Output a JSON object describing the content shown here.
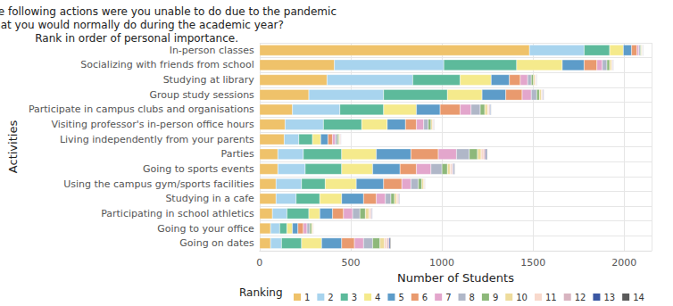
{
  "chart_data": {
    "type": "bar",
    "orientation": "horizontal",
    "stacked": true,
    "title": "Which of the following actions were you unable to do due to the pandemic\nthat you would normally do during the academic year?\nRank in order of personal importance.",
    "x_label": "Number of Students",
    "y_label": "Activities",
    "legend_title": "Ranking",
    "legend": "bottom",
    "grid": true,
    "xlim": [
      0,
      2150
    ],
    "xticks": [
      0,
      500,
      1000,
      1500,
      2000
    ],
    "categories": [
      "In-person classes",
      "Socializing with friends from school",
      "Studying at library",
      "Group study sessions",
      "Participate in campus clubs and organisations",
      "Visiting professor's in-person office hours",
      "Living independently from your parents",
      "Parties",
      "Going to sports events",
      "Using the campus gym/sports facilities",
      "Studying in a cafe",
      "Participating in school athletics",
      "Going to your office",
      "Going on dates"
    ],
    "series": [
      {
        "name": "1",
        "color": "#EFC26A",
        "values": [
          1480,
          410,
          370,
          270,
          180,
          140,
          135,
          100,
          100,
          90,
          90,
          70,
          60,
          60
        ]
      },
      {
        "name": "2",
        "color": "#A8D4EE",
        "values": [
          300,
          600,
          470,
          410,
          260,
          210,
          80,
          140,
          150,
          140,
          110,
          80,
          50,
          60
        ]
      },
      {
        "name": "3",
        "color": "#5DBA9B",
        "values": [
          140,
          400,
          260,
          350,
          240,
          210,
          75,
          210,
          200,
          130,
          130,
          120,
          40,
          110
        ]
      },
      {
        "name": "4",
        "color": "#F5EA8C",
        "values": [
          75,
          250,
          170,
          190,
          180,
          140,
          45,
          190,
          170,
          170,
          120,
          60,
          30,
          110
        ]
      },
      {
        "name": "5",
        "color": "#5D9CC9",
        "values": [
          45,
          120,
          100,
          130,
          130,
          100,
          40,
          190,
          150,
          150,
          120,
          70,
          30,
          110
        ]
      },
      {
        "name": "6",
        "color": "#E99A6E",
        "values": [
          30,
          70,
          60,
          90,
          110,
          60,
          25,
          150,
          90,
          100,
          70,
          60,
          30,
          70
        ]
      },
      {
        "name": "7",
        "color": "#E3A6CC",
        "values": [
          10,
          30,
          40,
          50,
          60,
          40,
          15,
          100,
          80,
          50,
          50,
          50,
          20,
          50
        ]
      },
      {
        "name": "8",
        "color": "#B0B7C8",
        "values": [
          8,
          25,
          20,
          30,
          50,
          25,
          12,
          70,
          60,
          40,
          30,
          40,
          15,
          50
        ]
      },
      {
        "name": "9",
        "color": "#8DB87A",
        "values": [
          5,
          15,
          12,
          15,
          25,
          15,
          8,
          45,
          30,
          20,
          20,
          30,
          10,
          40
        ]
      },
      {
        "name": "10",
        "color": "#EEDC9C",
        "values": [
          4,
          10,
          8,
          10,
          15,
          8,
          5,
          20,
          15,
          10,
          12,
          20,
          6,
          25
        ]
      },
      {
        "name": "11",
        "color": "#F8D9CC",
        "values": [
          3,
          5,
          5,
          6,
          8,
          5,
          4,
          15,
          10,
          5,
          8,
          10,
          4,
          15
        ]
      },
      {
        "name": "12",
        "color": "#D8B4C0",
        "values": [
          2,
          3,
          3,
          4,
          6,
          3,
          3,
          10,
          7,
          3,
          5,
          6,
          3,
          10
        ]
      },
      {
        "name": "13",
        "color": "#3B58A3",
        "values": [
          2,
          2,
          2,
          3,
          4,
          2,
          2,
          6,
          5,
          2,
          3,
          3,
          1,
          6
        ]
      },
      {
        "name": "14",
        "color": "#5B5B5B",
        "values": [
          2,
          2,
          2,
          2,
          2,
          2,
          1,
          4,
          3,
          1,
          2,
          1,
          1,
          4
        ]
      }
    ]
  }
}
